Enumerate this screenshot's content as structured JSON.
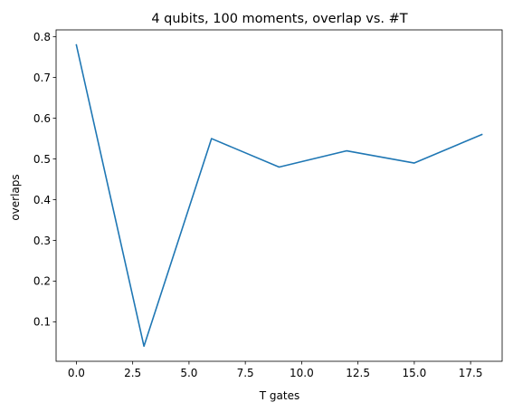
{
  "chart_data": {
    "type": "line",
    "title": "4 qubits, 100 moments, overlap vs. #T",
    "xlabel": "T gates",
    "ylabel": "overlaps",
    "xlim": [
      -0.9,
      18.9
    ],
    "ylim": [
      0.003,
      0.817
    ],
    "xticks": [
      0.0,
      2.5,
      5.0,
      7.5,
      10.0,
      12.5,
      15.0,
      17.5
    ],
    "xtick_labels": [
      "0.0",
      "2.5",
      "5.0",
      "7.5",
      "10.0",
      "12.5",
      "15.0",
      "17.5"
    ],
    "yticks": [
      0.1,
      0.2,
      0.3,
      0.4,
      0.5,
      0.6,
      0.7,
      0.8
    ],
    "ytick_labels": [
      "0.1",
      "0.2",
      "0.3",
      "0.4",
      "0.5",
      "0.6",
      "0.7",
      "0.8"
    ],
    "grid": false,
    "series": [
      {
        "color": "#1f77b4",
        "x": [
          0,
          3,
          6,
          9,
          12,
          15,
          18
        ],
        "y": [
          0.78,
          0.04,
          0.55,
          0.48,
          0.52,
          0.49,
          0.56
        ]
      }
    ]
  }
}
